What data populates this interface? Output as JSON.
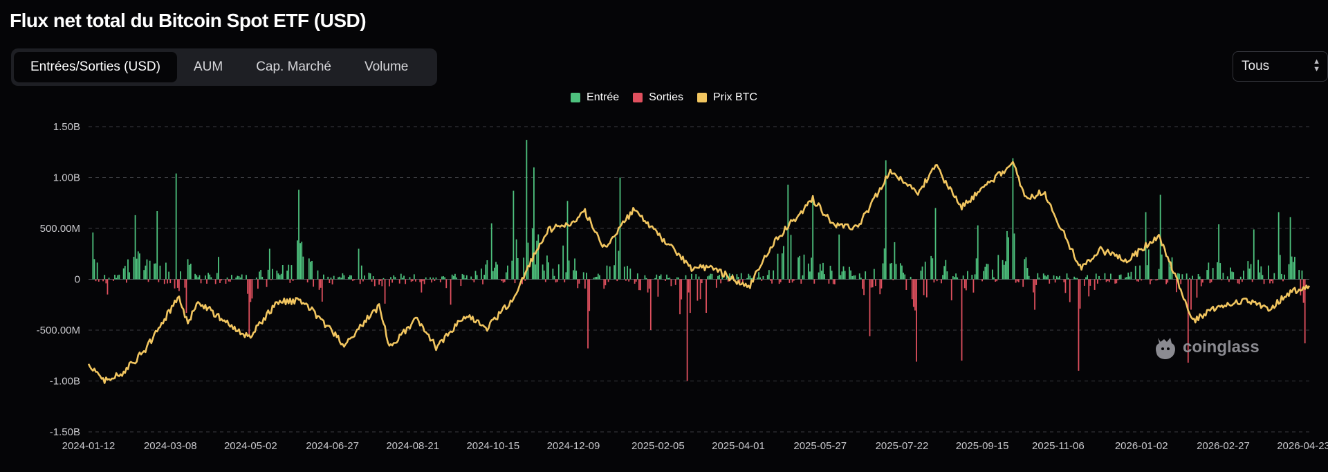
{
  "page": {
    "title": "Flux net total du Bitcoin Spot ETF (USD)"
  },
  "tabs": [
    {
      "label": "Entrées/Sorties (USD)",
      "active": true
    },
    {
      "label": "AUM",
      "active": false
    },
    {
      "label": "Cap. Marché",
      "active": false
    },
    {
      "label": "Volume",
      "active": false
    }
  ],
  "range_select": {
    "value": "Tous"
  },
  "watermark": {
    "text": "coinglass"
  },
  "colors": {
    "inflow": "#4ec27e",
    "outflow": "#e0505e",
    "price": "#f2c660",
    "background": "#050507",
    "grid": "#3a3b40"
  },
  "chart_data": {
    "type": "bar",
    "title": "Flux net total du Bitcoin Spot ETF (USD)",
    "legend": [
      "Entrée",
      "Sorties",
      "Prix BTC"
    ],
    "legend_position": "top-center",
    "grid": true,
    "yaxis": {
      "ticks": [
        1500000000,
        1000000000,
        500000000,
        0,
        -500000000,
        -1000000000,
        -1500000000
      ],
      "tick_labels": [
        "1.50B",
        "1.00B",
        "500.00M",
        "0",
        "-500.00M",
        "-1.00B",
        "-1.50B"
      ],
      "ylim": [
        -1500000000,
        1500000000
      ]
    },
    "xaxis": {
      "ticks": [
        "2024-01-12",
        "2024-03-08",
        "2024-05-02",
        "2024-06-27",
        "2024-08-21",
        "2024-10-15",
        "2024-12-09",
        "2025-02-05",
        "2025-04-01",
        "2025-05-27",
        "2025-07-22",
        "2025-09-15",
        "2025-11-06",
        "2026-01-02",
        "2026-02-27",
        "2026-04-23"
      ],
      "xlim": [
        "2024-01-12",
        "2026-04-27"
      ]
    },
    "flow_anchors": [
      [
        "2024-01-15",
        460000000
      ],
      [
        "2024-01-25",
        -150000000
      ],
      [
        "2024-02-13",
        630000000
      ],
      [
        "2024-02-28",
        670000000
      ],
      [
        "2024-03-12",
        1040000000
      ],
      [
        "2024-03-19",
        -330000000
      ],
      [
        "2024-04-10",
        220000000
      ],
      [
        "2024-05-01",
        -560000000
      ],
      [
        "2024-05-15",
        300000000
      ],
      [
        "2024-06-04",
        880000000
      ],
      [
        "2024-06-20",
        -220000000
      ],
      [
        "2024-07-15",
        300000000
      ],
      [
        "2024-08-02",
        -240000000
      ],
      [
        "2024-08-27",
        -130000000
      ],
      [
        "2024-09-16",
        -250000000
      ],
      [
        "2024-10-14",
        550000000
      ],
      [
        "2024-10-29",
        870000000
      ],
      [
        "2024-11-07",
        1370000000
      ],
      [
        "2024-11-12",
        1100000000
      ],
      [
        "2024-12-05",
        770000000
      ],
      [
        "2024-12-19",
        -680000000
      ],
      [
        "2025-01-10",
        1000000000
      ],
      [
        "2025-01-31",
        -500000000
      ],
      [
        "2025-02-25",
        -1000000000
      ],
      [
        "2025-03-10",
        -330000000
      ],
      [
        "2025-04-15",
        70000000
      ],
      [
        "2025-05-05",
        930000000
      ],
      [
        "2025-05-22",
        800000000
      ],
      [
        "2025-06-09",
        440000000
      ],
      [
        "2025-06-30",
        -560000000
      ],
      [
        "2025-07-11",
        1170000000
      ],
      [
        "2025-08-01",
        -810000000
      ],
      [
        "2025-08-14",
        700000000
      ],
      [
        "2025-09-01",
        -800000000
      ],
      [
        "2025-09-12",
        530000000
      ],
      [
        "2025-10-06",
        1190000000
      ],
      [
        "2025-10-21",
        -300000000
      ],
      [
        "2025-11-20",
        -900000000
      ],
      [
        "2026-01-05",
        660000000
      ],
      [
        "2026-01-15",
        830000000
      ],
      [
        "2026-02-03",
        -820000000
      ],
      [
        "2026-02-24",
        540000000
      ],
      [
        "2026-03-20",
        490000000
      ],
      [
        "2026-04-06",
        660000000
      ],
      [
        "2026-04-14",
        610000000
      ],
      [
        "2026-04-24",
        -630000000
      ]
    ],
    "price_series": {
      "name": "Prix BTC",
      "points": [
        [
          "2024-01-12",
          46000
        ],
        [
          "2024-01-23",
          39500
        ],
        [
          "2024-02-05",
          43000
        ],
        [
          "2024-02-20",
          52000
        ],
        [
          "2024-03-14",
          73000
        ],
        [
          "2024-03-20",
          62000
        ],
        [
          "2024-03-27",
          71000
        ],
        [
          "2024-04-14",
          63000
        ],
        [
          "2024-05-01",
          57000
        ],
        [
          "2024-05-21",
          71000
        ],
        [
          "2024-06-07",
          71000
        ],
        [
          "2024-07-05",
          54000
        ],
        [
          "2024-07-29",
          69000
        ],
        [
          "2024-08-05",
          53000
        ],
        [
          "2024-08-24",
          64000
        ],
        [
          "2024-09-06",
          53000
        ],
        [
          "2024-09-27",
          66000
        ],
        [
          "2024-10-10",
          60000
        ],
        [
          "2024-10-29",
          72000
        ],
        [
          "2024-11-13",
          90000
        ],
        [
          "2024-11-22",
          99000
        ],
        [
          "2024-12-05",
          101000
        ],
        [
          "2024-12-17",
          106000
        ],
        [
          "2024-12-30",
          92000
        ],
        [
          "2025-01-20",
          107000
        ],
        [
          "2025-02-05",
          97000
        ],
        [
          "2025-02-28",
          84000
        ],
        [
          "2025-03-15",
          84000
        ],
        [
          "2025-04-08",
          76000
        ],
        [
          "2025-04-25",
          94000
        ],
        [
          "2025-05-22",
          111000
        ],
        [
          "2025-06-05",
          101000
        ],
        [
          "2025-06-22",
          100000
        ],
        [
          "2025-07-14",
          122000
        ],
        [
          "2025-08-02",
          113000
        ],
        [
          "2025-08-14",
          124000
        ],
        [
          "2025-09-01",
          108000
        ],
        [
          "2025-09-15",
          115000
        ],
        [
          "2025-10-06",
          125000
        ],
        [
          "2025-10-15",
          111000
        ],
        [
          "2025-10-27",
          114000
        ],
        [
          "2025-11-21",
          84000
        ],
        [
          "2025-12-05",
          91000
        ],
        [
          "2025-12-24",
          87000
        ],
        [
          "2026-01-14",
          97000
        ],
        [
          "2026-02-06",
          63000
        ],
        [
          "2026-02-20",
          68000
        ],
        [
          "2026-03-15",
          71000
        ],
        [
          "2026-03-31",
          68000
        ],
        [
          "2026-04-12",
          74000
        ],
        [
          "2026-04-27",
          77000
        ]
      ]
    }
  }
}
